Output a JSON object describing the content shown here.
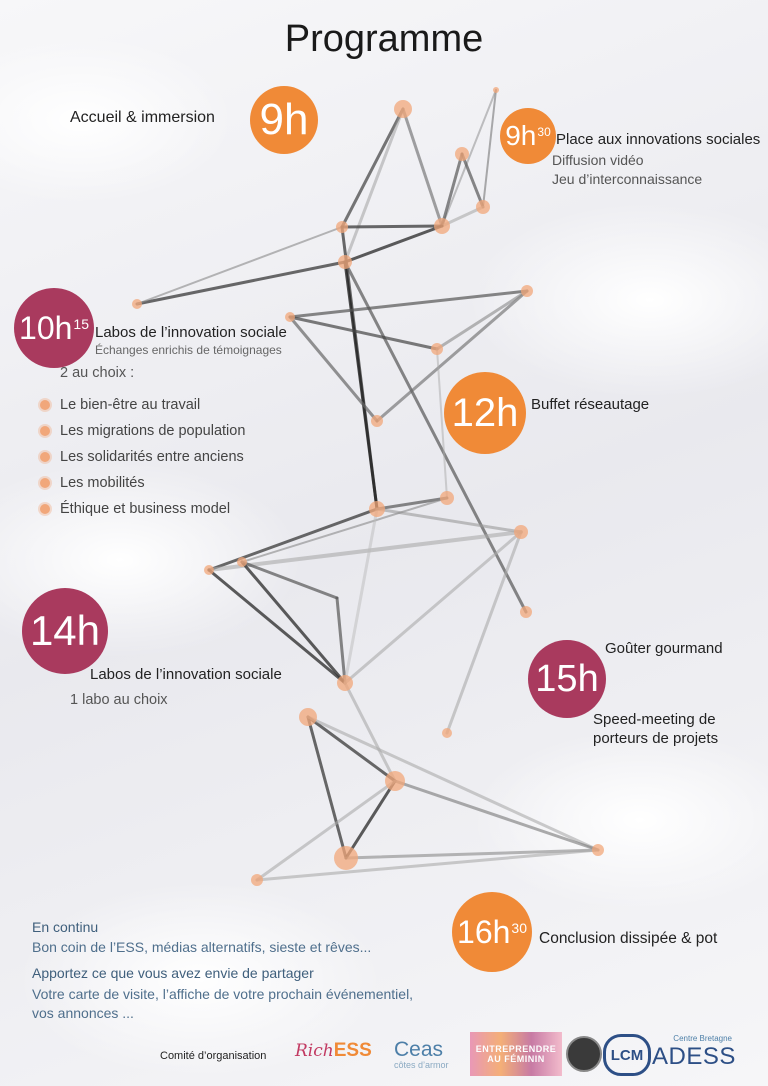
{
  "title": "Programme",
  "blocks": {
    "b9h": {
      "time": "9h",
      "label": "Accueil & immersion"
    },
    "b930": {
      "time": "9h",
      "sup": "30",
      "label": "Place aux innovations sociales",
      "lines": [
        "Diffusion vidéo",
        "Jeu d’interconnaissance"
      ]
    },
    "b1015": {
      "time": "10h",
      "sup": "15",
      "label": "Labos de l’innovation sociale",
      "subtitle": "Échanges enrichis de témoignages",
      "choice": "2 au choix :",
      "items": [
        "Le bien-être au travail",
        "Les migrations de population",
        "Les solidarités entre anciens",
        "Les mobilités",
        "Éthique et business model"
      ]
    },
    "b12h": {
      "time": "12h",
      "label": "Buffet réseautage"
    },
    "b14h": {
      "time": "14h",
      "label": "Labos de l’innovation sociale",
      "sub": "1 labo au choix"
    },
    "b15h": {
      "time": "15h",
      "top": "Goûter gourmand",
      "bottom1": "Speed-meeting de",
      "bottom2": "porteurs de projets"
    },
    "b1630": {
      "time": "16h",
      "sup": "30",
      "label": "Conclusion dissipée & pot"
    }
  },
  "footer": {
    "continu_title": "En continu",
    "continu_text": "Bon coin de l’ESS, médias alternatifs, sieste et rêves...",
    "bring_title": "Apportez ce que vous avez envie de partager",
    "bring_text1": "Votre carte de visite, l’affiche de votre prochain événementiel,",
    "bring_text2": "vos annonces ...",
    "committee": "Comité d’organisation"
  },
  "logos": {
    "richess_a": "Rich",
    "richess_b": "ESS",
    "ceas": "Ceas",
    "ceas_sub": "côtes d’armor",
    "entreprendre1": "ENTREPRENDRE",
    "entreprendre2": "AU FÉMININ",
    "lcm": "LCM",
    "adess": "ADESS",
    "adess_sup": "Centre Bretagne"
  },
  "colors": {
    "orange": "#f08a37",
    "plum": "#a93a5e",
    "blue": "#4f6f8c"
  }
}
